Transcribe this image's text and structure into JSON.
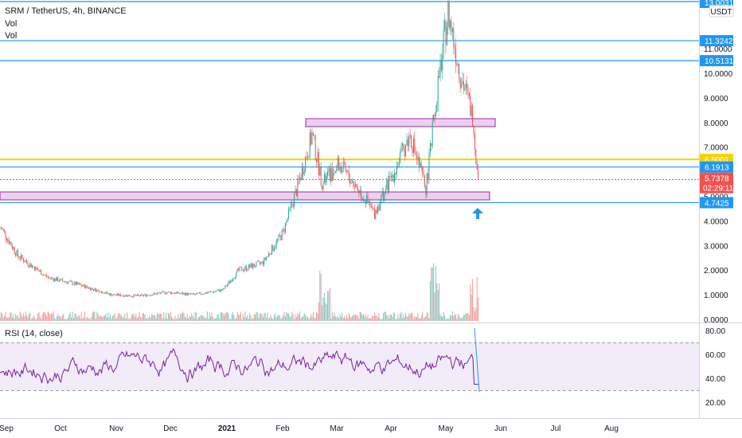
{
  "legend": {
    "symbol_line": "SRM / TetherUS, 4h, BINANCE",
    "vol1": "Vol",
    "vol2": "Vol",
    "rsi": "RSI (14, close)"
  },
  "currency": "USDT",
  "price_axis_ticks": [
    "11.0000",
    "10.0000",
    "9.0000",
    "8.0000",
    "7.0000",
    "5.0000",
    "4.0000",
    "3.0000",
    "2.0000",
    "1.0000",
    "0.0000"
  ],
  "rsi_axis_ticks": [
    "80.00",
    "60.00",
    "40.00",
    "20.00"
  ],
  "time_axis_ticks": [
    "Sep",
    "Oct",
    "Nov",
    "Dec",
    "2021",
    "Feb",
    "Mar",
    "Apr",
    "May",
    "Jun",
    "Jul",
    "Aug"
  ],
  "price_tags": [
    {
      "label": "13.0031",
      "value": 13.0031,
      "color": "#2196f3"
    },
    {
      "label": "11.3242",
      "value": 11.3242,
      "color": "#2196f3"
    },
    {
      "label": "10.5131",
      "value": 10.5131,
      "color": "#2196f3"
    },
    {
      "label": "6.5001",
      "value": 6.5001,
      "color": "#f5d300"
    },
    {
      "label": "6.1913",
      "value": 6.1913,
      "color": "#2196f3"
    },
    {
      "label": "5.7378",
      "value": 5.7378,
      "color": "#ef5350"
    },
    {
      "label": "4.7425",
      "value": 4.7425,
      "color": "#2196f3"
    }
  ],
  "countdown": "02:29:11",
  "chart_data": {
    "type": "candlestick",
    "symbol": "SRM / TetherUS",
    "timeframe": "4h",
    "exchange": "BINANCE",
    "ylim": [
      0,
      13.0
    ],
    "last_price": 5.7378,
    "horizontal_levels": [
      13.0031,
      11.3242,
      10.5131,
      6.5001,
      6.1913,
      4.7425
    ],
    "zones": [
      {
        "from_month": "Feb",
        "to_month": "May",
        "low": 7.85,
        "high": 8.2
      },
      {
        "from_month": "Sep",
        "to_month": "May",
        "low": 4.75,
        "high": 5.05
      }
    ],
    "approx_close_path": [
      {
        "t": "Sep",
        "v": 3.7
      },
      {
        "t": "Sep",
        "v": 2.6
      },
      {
        "t": "Oct",
        "v": 1.7
      },
      {
        "t": "Oct",
        "v": 1.4
      },
      {
        "t": "Nov",
        "v": 1.0
      },
      {
        "t": "Nov",
        "v": 0.95
      },
      {
        "t": "Dec",
        "v": 1.1
      },
      {
        "t": "Dec",
        "v": 1.0
      },
      {
        "t": "2021",
        "v": 1.2
      },
      {
        "t": "2021",
        "v": 2.0
      },
      {
        "t": "Feb",
        "v": 2.3
      },
      {
        "t": "Feb",
        "v": 3.5
      },
      {
        "t": "Feb",
        "v": 5.2
      },
      {
        "t": "Feb",
        "v": 7.5
      },
      {
        "t": "Mar",
        "v": 5.5
      },
      {
        "t": "Mar",
        "v": 6.3
      },
      {
        "t": "Mar",
        "v": 5.3
      },
      {
        "t": "Apr",
        "v": 4.3
      },
      {
        "t": "Apr",
        "v": 6.0
      },
      {
        "t": "Apr",
        "v": 7.5
      },
      {
        "t": "Apr",
        "v": 5.3
      },
      {
        "t": "May",
        "v": 9.5
      },
      {
        "t": "May",
        "v": 12.5
      },
      {
        "t": "May",
        "v": 10.0
      },
      {
        "t": "May",
        "v": 8.5
      },
      {
        "t": "May",
        "v": 5.74
      }
    ],
    "rsi": {
      "label": "RSI (14, close)",
      "upper_band": 70,
      "lower_band": 30,
      "ylim": [
        15,
        85
      ],
      "last_point_value": 35
    }
  }
}
